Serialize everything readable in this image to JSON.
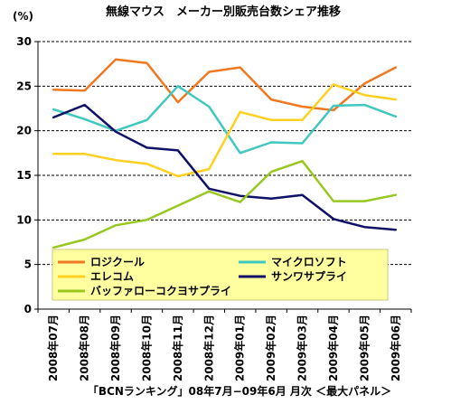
{
  "chart_data": {
    "type": "line",
    "title": "無線マウス　メーカー別販売台数シェア推移",
    "yunit": "(%)",
    "ylim": [
      0,
      30
    ],
    "yticks": [
      0,
      5,
      10,
      15,
      20,
      25,
      30
    ],
    "grid": "horizontal dashed",
    "legend_placement": "bottom-center",
    "categories": [
      "2008年07月",
      "2008年08月",
      "2008年09月",
      "2008年10月",
      "2008年11月",
      "2008年12月",
      "2009年01月",
      "2009年02月",
      "2009年03月",
      "2009年04月",
      "2009年05月",
      "2009年06月"
    ],
    "series": [
      {
        "name": "ロジクール",
        "color": "#f07820",
        "values": [
          24.6,
          24.5,
          28.0,
          27.6,
          23.2,
          26.6,
          27.1,
          23.5,
          22.7,
          22.3,
          25.3,
          27.1
        ]
      },
      {
        "name": "マイクロソフト",
        "color": "#40c8c0",
        "values": [
          22.4,
          21.3,
          20.0,
          21.2,
          25.0,
          22.7,
          17.5,
          18.7,
          18.6,
          22.8,
          22.9,
          21.6
        ]
      },
      {
        "name": "エレコム",
        "color": "#ffd020",
        "values": [
          17.4,
          17.4,
          16.7,
          16.3,
          14.9,
          15.7,
          22.1,
          21.2,
          21.2,
          25.2,
          24.0,
          23.5
        ]
      },
      {
        "name": "サンワサプライ",
        "color": "#101068",
        "values": [
          21.5,
          22.9,
          19.9,
          18.1,
          17.8,
          13.5,
          12.7,
          12.4,
          12.8,
          10.1,
          9.2,
          8.9
        ]
      },
      {
        "name": "バッファローコクヨサプライ",
        "color": "#98c820",
        "values": [
          6.9,
          7.8,
          9.4,
          10.0,
          11.6,
          13.2,
          12.0,
          15.4,
          16.6,
          12.1,
          12.1,
          12.8
        ]
      }
    ],
    "footer": "「BCNランキング」08年7月−09年6月  月次  ＜最大パネル＞"
  }
}
